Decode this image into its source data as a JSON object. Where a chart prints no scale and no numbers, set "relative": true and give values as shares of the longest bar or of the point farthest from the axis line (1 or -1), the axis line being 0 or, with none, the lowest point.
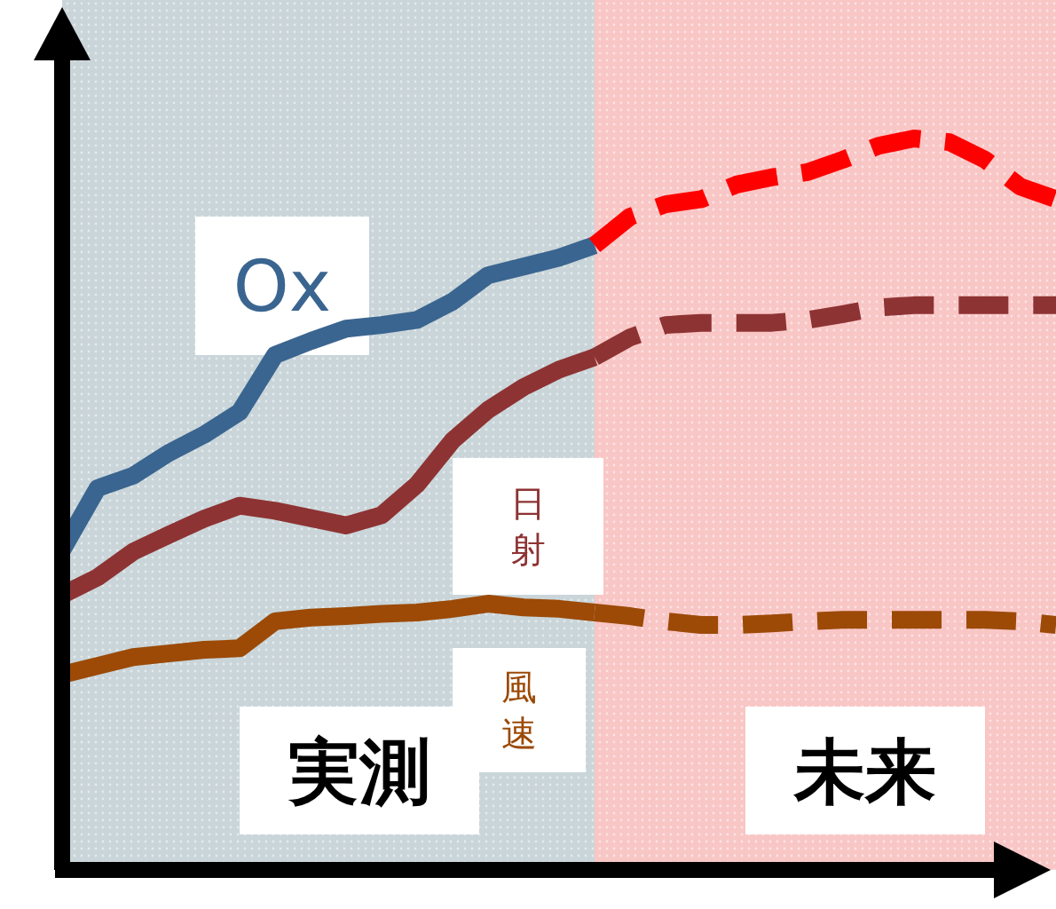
{
  "chart_data": {
    "type": "line",
    "relative": true,
    "categories": [
      null,
      null,
      null,
      null,
      null,
      null,
      null,
      null,
      null,
      null,
      null,
      null,
      null,
      null,
      null,
      null,
      null,
      null,
      null,
      null,
      null,
      null,
      null,
      null,
      null,
      null,
      null,
      null,
      null
    ],
    "annotations": [
      "実測",
      "未来"
    ],
    "series": [
      {
        "name": "Ox",
        "color": "#3a6590",
        "line_style": "solid",
        "values": [
          0.437,
          0.522,
          0.539,
          0.57,
          0.595,
          0.626,
          0.704,
          0.723,
          0.74,
          0.745,
          0.752,
          0.777,
          0.813,
          0.825,
          0.837,
          0.854,
          null,
          null,
          null,
          null,
          null,
          null,
          null,
          null,
          null,
          null,
          null,
          null,
          null
        ]
      },
      {
        "color": "#ff0000",
        "line_style": "dashed",
        "values": [
          null,
          null,
          null,
          null,
          null,
          null,
          null,
          null,
          null,
          null,
          null,
          null,
          null,
          null,
          null,
          0.854,
          0.893,
          0.91,
          0.917,
          0.937,
          0.947,
          0.954,
          0.971,
          0.99,
          1,
          0.995,
          0.971,
          0.934,
          0.917
        ]
      },
      {
        "name": "日射",
        "color": "#8e3333",
        "line_style": "solid",
        "values": [
          0.376,
          0.4,
          0.435,
          0.458,
          0.48,
          0.498,
          0.491,
          0.481,
          0.471,
          0.485,
          0.527,
          0.587,
          0.629,
          0.66,
          0.684,
          0.701,
          null,
          null,
          null,
          null,
          null,
          null,
          null,
          null,
          null,
          null,
          null,
          null,
          null
        ]
      },
      {
        "color": "#8e3333",
        "line_style": "dashed",
        "values": [
          null,
          null,
          null,
          null,
          null,
          null,
          null,
          null,
          null,
          null,
          null,
          null,
          null,
          null,
          null,
          0.701,
          0.728,
          0.745,
          0.748,
          0.748,
          0.748,
          0.752,
          0.76,
          0.769,
          0.772,
          0.772,
          0.772,
          0.772,
          0.772
        ]
      },
      {
        "name": "風速",
        "color": "#9c4a06",
        "line_style": "solid",
        "values": [
          0.267,
          0.279,
          0.291,
          0.296,
          0.301,
          0.303,
          0.34,
          0.345,
          0.347,
          0.35,
          0.352,
          0.357,
          0.364,
          0.359,
          0.357,
          0.352,
          null,
          null,
          null,
          null,
          null,
          null,
          null,
          null,
          null,
          null,
          null,
          null,
          null
        ]
      },
      {
        "color": "#9c4a06",
        "line_style": "dashed",
        "values": [
          null,
          null,
          null,
          null,
          null,
          null,
          null,
          null,
          null,
          null,
          null,
          null,
          null,
          null,
          null,
          0.352,
          0.347,
          0.34,
          0.335,
          0.335,
          0.337,
          0.34,
          0.342,
          0.342,
          0.342,
          0.342,
          0.342,
          0.34,
          0.335
        ]
      }
    ]
  }
}
